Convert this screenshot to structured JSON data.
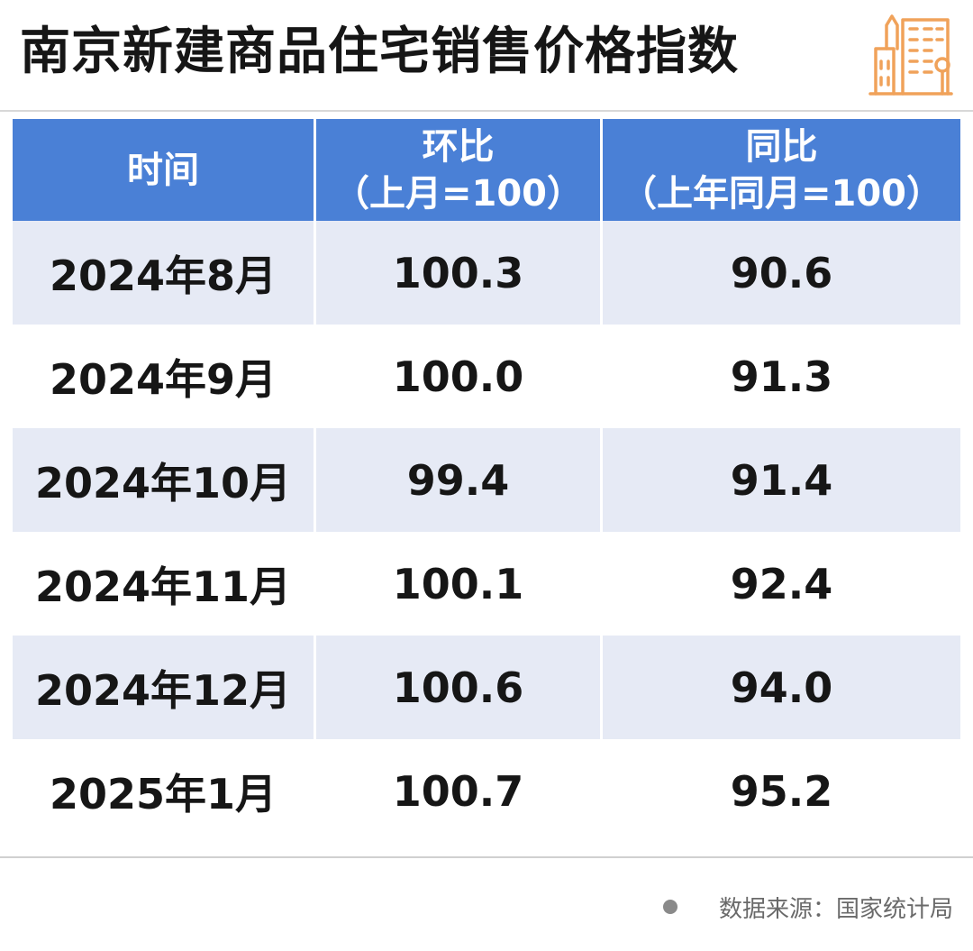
{
  "title": "南京新建商品住宅销售价格指数",
  "logo_icon": "city-buildings-icon",
  "accent_color": "#4a80d6",
  "logo_color": "#f0a25a",
  "table": {
    "headers": [
      {
        "line1": "时间",
        "line2": ""
      },
      {
        "line1": "环比",
        "line2": "（上月=100）"
      },
      {
        "line1": "同比",
        "line2": "（上年同月=100）"
      }
    ],
    "rows": [
      [
        "2024年8月",
        "100.3",
        "90.6"
      ],
      [
        "2024年9月",
        "100.0",
        "91.3"
      ],
      [
        "2024年10月",
        "99.4",
        "91.4"
      ],
      [
        "2024年11月",
        "100.1",
        "92.4"
      ],
      [
        "2024年12月",
        "100.6",
        "94.0"
      ],
      [
        "2025年1月",
        "100.7",
        "95.2"
      ]
    ]
  },
  "source": "数据来源：国家统计局"
}
